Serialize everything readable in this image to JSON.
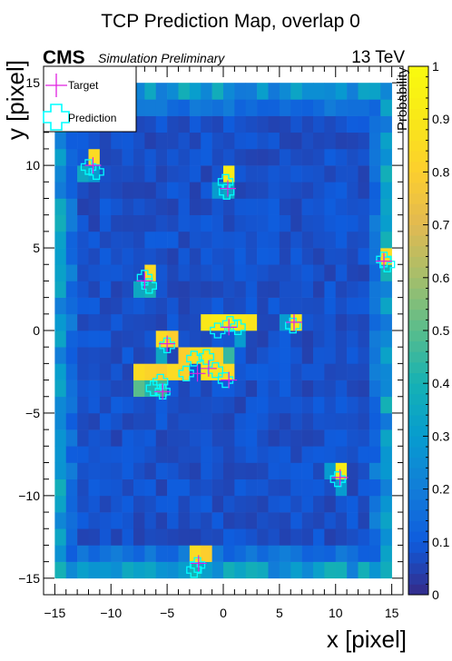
{
  "chart_data": {
    "type": "heatmap",
    "title": "TCP Prediction Map, overlap 0",
    "xlabel": "x [pixel]",
    "ylabel": "y [pixel]",
    "zlabel": "Probability",
    "experiment": "CMS",
    "subtitle": "Simulation Preliminary",
    "energy": "13 TeV",
    "xlim": [
      -16,
      16
    ],
    "ylim": [
      -16,
      16
    ],
    "zlim": [
      0,
      1
    ],
    "x_ticks": [
      "−15",
      "−10",
      "−5",
      "0",
      "5",
      "10",
      "15"
    ],
    "y_ticks": [
      "−15",
      "−10",
      "−5",
      "0",
      "5",
      "10",
      "15"
    ],
    "z_ticks": [
      "0",
      "0.1",
      "0.2",
      "0.3",
      "0.4",
      "0.5",
      "0.6",
      "0.7",
      "0.8",
      "0.9",
      "1"
    ],
    "grid": false,
    "legend": {
      "placement": "top-left",
      "items": [
        {
          "label": "Target",
          "marker": "thin cross",
          "color": "#e020e0"
        },
        {
          "label": "Prediction",
          "marker": "open cross",
          "color": "#00ffff"
        }
      ]
    },
    "background_level": 0.08,
    "hot_cells": [
      {
        "x": -11.5,
        "y": 10.5,
        "z": 0.85
      },
      {
        "x": -12.5,
        "y": 9.5,
        "z": 0.35
      },
      {
        "x": -11.5,
        "y": 9.5,
        "z": 0.3
      },
      {
        "x": 0.5,
        "y": 9.5,
        "z": 0.92
      },
      {
        "x": 0.5,
        "y": 8.5,
        "z": 0.35
      },
      {
        "x": -0.5,
        "y": 8.5,
        "z": 0.3
      },
      {
        "x": -6.5,
        "y": 3.5,
        "z": 0.85
      },
      {
        "x": -6.5,
        "y": 2.5,
        "z": 0.4
      },
      {
        "x": -7.5,
        "y": 2.5,
        "z": 0.35
      },
      {
        "x": 14.5,
        "y": 4.5,
        "z": 0.85
      },
      {
        "x": 14.5,
        "y": 3.5,
        "z": 0.4
      },
      {
        "x": -1.5,
        "y": 0.5,
        "z": 0.9
      },
      {
        "x": -0.5,
        "y": 0.5,
        "z": 0.92
      },
      {
        "x": 0.5,
        "y": 0.5,
        "z": 0.92
      },
      {
        "x": 1.5,
        "y": 0.5,
        "z": 0.9
      },
      {
        "x": 2.5,
        "y": 0.5,
        "z": 0.88
      },
      {
        "x": 6.5,
        "y": 0.5,
        "z": 0.9
      },
      {
        "x": 5.5,
        "y": 0.5,
        "z": 0.3
      },
      {
        "x": 1.5,
        "y": -0.5,
        "z": 0.3
      },
      {
        "x": -5.5,
        "y": -0.5,
        "z": 0.85
      },
      {
        "x": -4.5,
        "y": -0.5,
        "z": 0.8
      },
      {
        "x": -5.5,
        "y": -1.5,
        "z": 0.35
      },
      {
        "x": -3.5,
        "y": -1.5,
        "z": 0.8
      },
      {
        "x": -2.5,
        "y": -1.5,
        "z": 0.85
      },
      {
        "x": -1.5,
        "y": -1.5,
        "z": 0.88
      },
      {
        "x": -0.5,
        "y": -1.5,
        "z": 0.82
      },
      {
        "x": 0.5,
        "y": -1.5,
        "z": 0.45
      },
      {
        "x": -7.5,
        "y": -2.5,
        "z": 0.85
      },
      {
        "x": -6.5,
        "y": -2.5,
        "z": 0.82
      },
      {
        "x": -5.5,
        "y": -2.5,
        "z": 0.8
      },
      {
        "x": -4.5,
        "y": -2.5,
        "z": 0.85
      },
      {
        "x": -3.5,
        "y": -2.5,
        "z": 0.82
      },
      {
        "x": -1.5,
        "y": -2.5,
        "z": 0.88
      },
      {
        "x": -0.5,
        "y": -2.5,
        "z": 0.86
      },
      {
        "x": 0.5,
        "y": -2.5,
        "z": 0.85
      },
      {
        "x": -7.5,
        "y": -3.5,
        "z": 0.5
      },
      {
        "x": -6.5,
        "y": -3.5,
        "z": 0.42
      },
      {
        "x": -5.5,
        "y": -3.5,
        "z": 0.45
      },
      {
        "x": 10.5,
        "y": -8.5,
        "z": 0.92
      },
      {
        "x": 9.5,
        "y": -8.5,
        "z": 0.3
      },
      {
        "x": 10.5,
        "y": -9.5,
        "z": 0.3
      },
      {
        "x": -2.5,
        "y": -13.5,
        "z": 0.85
      },
      {
        "x": -1.5,
        "y": -13.5,
        "z": 0.8
      },
      {
        "x": -2.5,
        "y": -14.5,
        "z": 0.4
      }
    ],
    "targets": [
      {
        "x": -11.6,
        "y": 10.0
      },
      {
        "x": 0.4,
        "y": 8.6
      },
      {
        "x": -7.0,
        "y": 3.0
      },
      {
        "x": 14.3,
        "y": 4.2
      },
      {
        "x": 0.5,
        "y": 0.2
      },
      {
        "x": 6.3,
        "y": 0.5
      },
      {
        "x": -5.0,
        "y": -0.8
      },
      {
        "x": -2.3,
        "y": -2.6
      },
      {
        "x": -5.4,
        "y": -3.7
      },
      {
        "x": -1.3,
        "y": -2.3
      },
      {
        "x": 0.5,
        "y": -3.0
      },
      {
        "x": 10.4,
        "y": -8.9
      },
      {
        "x": -2.2,
        "y": -14.1
      }
    ],
    "predictions": [
      {
        "x": -12.0,
        "y": 9.9
      },
      {
        "x": -11.3,
        "y": 9.6
      },
      {
        "x": 0.2,
        "y": 9.0
      },
      {
        "x": 0.3,
        "y": 8.4
      },
      {
        "x": -7.0,
        "y": 3.2
      },
      {
        "x": -6.6,
        "y": 2.7
      },
      {
        "x": 14.3,
        "y": 4.3
      },
      {
        "x": 14.6,
        "y": 4.0
      },
      {
        "x": -0.5,
        "y": 0.0
      },
      {
        "x": 0.6,
        "y": 0.4
      },
      {
        "x": 1.3,
        "y": 0.2
      },
      {
        "x": 6.2,
        "y": 0.3
      },
      {
        "x": -5.0,
        "y": -0.9
      },
      {
        "x": -2.6,
        "y": -1.7
      },
      {
        "x": -1.5,
        "y": -1.6
      },
      {
        "x": -3.3,
        "y": -2.6
      },
      {
        "x": -0.7,
        "y": -2.4
      },
      {
        "x": -5.6,
        "y": -3.1
      },
      {
        "x": -6.2,
        "y": -3.5
      },
      {
        "x": -5.4,
        "y": -3.7
      },
      {
        "x": 0.2,
        "y": -3.0
      },
      {
        "x": 10.2,
        "y": -9.0
      },
      {
        "x": -2.3,
        "y": -14.2
      },
      {
        "x": -2.6,
        "y": -14.5
      }
    ]
  }
}
